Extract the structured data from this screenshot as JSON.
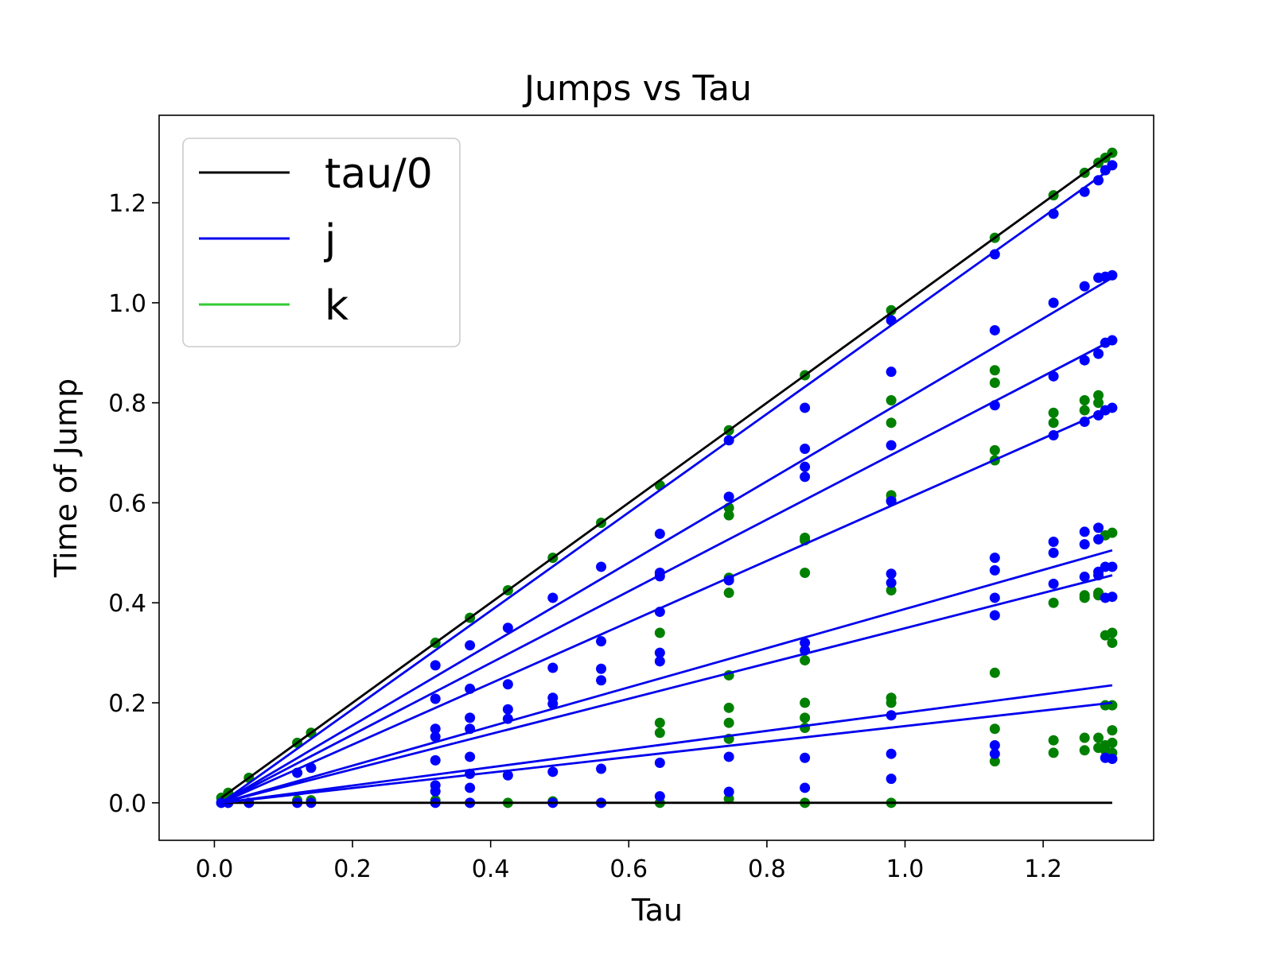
{
  "chart_data": {
    "type": "scatter",
    "title": "Jumps vs Tau",
    "xlabel": "Tau",
    "ylabel": "Time of Jump",
    "xlim": [
      -0.08,
      1.36
    ],
    "ylim": [
      -0.075,
      1.375
    ],
    "x_ticks": [
      "0.0",
      "0.2",
      "0.4",
      "0.6",
      "0.8",
      "1.0",
      "1.2"
    ],
    "y_ticks": [
      "0.0",
      "0.2",
      "0.4",
      "0.6",
      "0.8",
      "1.0",
      "1.2"
    ],
    "grid": false,
    "legend": {
      "placement": "top-left",
      "entries": [
        {
          "label": "tau/0",
          "color": "#000000"
        },
        {
          "label": "j",
          "color": "#0000ee"
        },
        {
          "label": "k",
          "color": "#33cc33"
        }
      ]
    },
    "colors": {
      "tau": "#000000",
      "j_line": "#0000ee",
      "j_point": "#0000ff",
      "k_point": "#008000"
    },
    "tau_values": [
      0.01,
      0.02,
      0.05,
      0.12,
      0.14,
      0.32,
      0.37,
      0.425,
      0.49,
      0.56,
      0.645,
      0.745,
      0.855,
      0.98,
      1.13,
      1.215,
      1.26,
      1.28,
      1.29,
      1.3
    ],
    "lines": [
      {
        "series": "tau/0",
        "kind": "tau",
        "x": [
          0.01,
          1.3
        ],
        "y": [
          0.01,
          1.3
        ]
      },
      {
        "series": "tau/0",
        "kind": "tau",
        "x": [
          0.01,
          1.3
        ],
        "y": [
          0.0,
          0.0
        ]
      },
      {
        "series": "j",
        "kind": "j",
        "x": [
          0.01,
          1.3
        ],
        "y": [
          0.0,
          1.27
        ]
      },
      {
        "series": "j",
        "kind": "j",
        "x": [
          0.01,
          1.3
        ],
        "y": [
          0.0,
          1.05
        ]
      },
      {
        "series": "j",
        "kind": "j",
        "x": [
          0.01,
          1.3
        ],
        "y": [
          0.0,
          0.925
        ]
      },
      {
        "series": "j",
        "kind": "j",
        "x": [
          0.01,
          1.3
        ],
        "y": [
          0.0,
          0.79
        ]
      },
      {
        "series": "j",
        "kind": "j",
        "x": [
          0.01,
          1.3
        ],
        "y": [
          0.0,
          0.505
        ]
      },
      {
        "series": "j",
        "kind": "j",
        "x": [
          0.01,
          1.3
        ],
        "y": [
          0.0,
          0.455
        ]
      },
      {
        "series": "j",
        "kind": "j",
        "x": [
          0.01,
          1.3
        ],
        "y": [
          0.0,
          0.235
        ]
      },
      {
        "series": "j",
        "kind": "j",
        "x": [
          0.01,
          1.3
        ],
        "y": [
          0.0,
          0.2
        ]
      }
    ],
    "k_points": [
      [
        0.01,
        0.01
      ],
      [
        0.02,
        0.02
      ],
      [
        0.05,
        0.05
      ],
      [
        0.12,
        0.12
      ],
      [
        0.14,
        0.14
      ],
      [
        0.32,
        0.32
      ],
      [
        0.37,
        0.37
      ],
      [
        0.425,
        0.425
      ],
      [
        0.49,
        0.49
      ],
      [
        0.56,
        0.56
      ],
      [
        0.645,
        0.635
      ],
      [
        0.745,
        0.745
      ],
      [
        0.855,
        0.855
      ],
      [
        0.98,
        0.985
      ],
      [
        1.13,
        1.13
      ],
      [
        1.215,
        1.215
      ],
      [
        1.26,
        1.26
      ],
      [
        1.28,
        1.28
      ],
      [
        1.29,
        1.29
      ],
      [
        1.3,
        1.3
      ],
      [
        0.01,
        0.0
      ],
      [
        0.02,
        0.0
      ],
      [
        0.05,
        0.0
      ],
      [
        0.12,
        0.005
      ],
      [
        0.14,
        0.005
      ],
      [
        0.32,
        0.005
      ],
      [
        0.37,
        0.0
      ],
      [
        0.425,
        0.0
      ],
      [
        0.49,
        0.003
      ],
      [
        0.56,
        0.0
      ],
      [
        0.645,
        0.0
      ],
      [
        0.745,
        0.008
      ],
      [
        0.855,
        0.0
      ],
      [
        0.98,
        0.0
      ],
      [
        0.645,
        0.34
      ],
      [
        0.645,
        0.16
      ],
      [
        0.645,
        0.14
      ],
      [
        0.745,
        0.59
      ],
      [
        0.745,
        0.575
      ],
      [
        0.745,
        0.45
      ],
      [
        0.745,
        0.42
      ],
      [
        0.745,
        0.255
      ],
      [
        0.745,
        0.19
      ],
      [
        0.745,
        0.16
      ],
      [
        0.745,
        0.128
      ],
      [
        0.855,
        0.53
      ],
      [
        0.855,
        0.525
      ],
      [
        0.855,
        0.46
      ],
      [
        0.855,
        0.285
      ],
      [
        0.855,
        0.2
      ],
      [
        0.855,
        0.17
      ],
      [
        0.855,
        0.15
      ],
      [
        0.98,
        0.805
      ],
      [
        0.98,
        0.76
      ],
      [
        0.98,
        0.615
      ],
      [
        0.98,
        0.605
      ],
      [
        0.98,
        0.425
      ],
      [
        0.98,
        0.21
      ],
      [
        0.98,
        0.2
      ],
      [
        1.13,
        0.865
      ],
      [
        1.13,
        0.84
      ],
      [
        1.13,
        0.705
      ],
      [
        1.13,
        0.685
      ],
      [
        1.13,
        0.26
      ],
      [
        1.13,
        0.148
      ],
      [
        1.13,
        0.083
      ],
      [
        1.215,
        0.78
      ],
      [
        1.215,
        0.76
      ],
      [
        1.215,
        0.4
      ],
      [
        1.215,
        0.125
      ],
      [
        1.215,
        0.1
      ],
      [
        1.26,
        0.805
      ],
      [
        1.26,
        0.785
      ],
      [
        1.26,
        0.415
      ],
      [
        1.26,
        0.41
      ],
      [
        1.26,
        0.13
      ],
      [
        1.26,
        0.105
      ],
      [
        1.28,
        0.815
      ],
      [
        1.28,
        0.8
      ],
      [
        1.28,
        0.42
      ],
      [
        1.28,
        0.415
      ],
      [
        1.28,
        0.13
      ],
      [
        1.28,
        0.11
      ],
      [
        1.29,
        0.535
      ],
      [
        1.29,
        0.335
      ],
      [
        1.29,
        0.195
      ],
      [
        1.29,
        0.115
      ],
      [
        1.29,
        0.105
      ],
      [
        1.3,
        0.54
      ],
      [
        1.3,
        0.34
      ],
      [
        1.3,
        0.32
      ],
      [
        1.3,
        0.195
      ],
      [
        1.3,
        0.145
      ],
      [
        1.3,
        0.12
      ],
      [
        1.3,
        0.1
      ]
    ],
    "j_points": [
      [
        0.01,
        0.0
      ],
      [
        0.02,
        0.0
      ],
      [
        0.05,
        0.0
      ],
      [
        0.12,
        0.0
      ],
      [
        0.14,
        0.0
      ],
      [
        0.12,
        0.06
      ],
      [
        0.14,
        0.07
      ],
      [
        0.32,
        0.275
      ],
      [
        0.32,
        0.208
      ],
      [
        0.32,
        0.148
      ],
      [
        0.32,
        0.132
      ],
      [
        0.32,
        0.085
      ],
      [
        0.32,
        0.035
      ],
      [
        0.32,
        0.023
      ],
      [
        0.32,
        0.0
      ],
      [
        0.37,
        0.315
      ],
      [
        0.37,
        0.228
      ],
      [
        0.37,
        0.17
      ],
      [
        0.37,
        0.148
      ],
      [
        0.37,
        0.092
      ],
      [
        0.37,
        0.058
      ],
      [
        0.37,
        0.03
      ],
      [
        0.37,
        0.0
      ],
      [
        0.425,
        0.35
      ],
      [
        0.425,
        0.237
      ],
      [
        0.425,
        0.187
      ],
      [
        0.425,
        0.168
      ],
      [
        0.425,
        0.055
      ],
      [
        0.49,
        0.41
      ],
      [
        0.49,
        0.27
      ],
      [
        0.49,
        0.21
      ],
      [
        0.49,
        0.198
      ],
      [
        0.49,
        0.062
      ],
      [
        0.49,
        0.0
      ],
      [
        0.56,
        0.472
      ],
      [
        0.56,
        0.323
      ],
      [
        0.56,
        0.268
      ],
      [
        0.56,
        0.245
      ],
      [
        0.56,
        0.068
      ],
      [
        0.56,
        0.0
      ],
      [
        0.645,
        0.538
      ],
      [
        0.645,
        0.46
      ],
      [
        0.645,
        0.453
      ],
      [
        0.645,
        0.382
      ],
      [
        0.645,
        0.3
      ],
      [
        0.645,
        0.283
      ],
      [
        0.645,
        0.08
      ],
      [
        0.645,
        0.013
      ],
      [
        0.745,
        0.725
      ],
      [
        0.745,
        0.612
      ],
      [
        0.745,
        0.445
      ],
      [
        0.745,
        0.092
      ],
      [
        0.745,
        0.022
      ],
      [
        0.855,
        0.79
      ],
      [
        0.855,
        0.708
      ],
      [
        0.855,
        0.672
      ],
      [
        0.855,
        0.652
      ],
      [
        0.855,
        0.32
      ],
      [
        0.855,
        0.305
      ],
      [
        0.855,
        0.09
      ],
      [
        0.855,
        0.03
      ],
      [
        0.98,
        0.965
      ],
      [
        0.98,
        0.862
      ],
      [
        0.98,
        0.715
      ],
      [
        0.98,
        0.603
      ],
      [
        0.98,
        0.458
      ],
      [
        0.98,
        0.44
      ],
      [
        0.98,
        0.175
      ],
      [
        0.98,
        0.098
      ],
      [
        0.98,
        0.048
      ],
      [
        1.13,
        1.097
      ],
      [
        1.13,
        0.945
      ],
      [
        1.13,
        0.795
      ],
      [
        1.13,
        0.49
      ],
      [
        1.13,
        0.465
      ],
      [
        1.13,
        0.41
      ],
      [
        1.13,
        0.375
      ],
      [
        1.13,
        0.115
      ],
      [
        1.13,
        0.098
      ],
      [
        1.215,
        1.178
      ],
      [
        1.215,
        1.0
      ],
      [
        1.215,
        0.853
      ],
      [
        1.215,
        0.735
      ],
      [
        1.215,
        0.522
      ],
      [
        1.215,
        0.5
      ],
      [
        1.215,
        0.438
      ],
      [
        1.26,
        1.222
      ],
      [
        1.26,
        1.033
      ],
      [
        1.26,
        0.885
      ],
      [
        1.26,
        0.762
      ],
      [
        1.26,
        0.542
      ],
      [
        1.26,
        0.517
      ],
      [
        1.26,
        0.452
      ],
      [
        1.28,
        1.245
      ],
      [
        1.28,
        1.05
      ],
      [
        1.28,
        0.898
      ],
      [
        1.28,
        0.775
      ],
      [
        1.28,
        0.55
      ],
      [
        1.28,
        0.527
      ],
      [
        1.28,
        0.462
      ],
      [
        1.28,
        0.455
      ],
      [
        1.29,
        1.265
      ],
      [
        1.29,
        1.052
      ],
      [
        1.29,
        0.92
      ],
      [
        1.29,
        0.785
      ],
      [
        1.29,
        0.472
      ],
      [
        1.29,
        0.41
      ],
      [
        1.29,
        0.09
      ],
      [
        1.3,
        1.275
      ],
      [
        1.3,
        1.055
      ],
      [
        1.3,
        0.925
      ],
      [
        1.3,
        0.79
      ],
      [
        1.3,
        0.472
      ],
      [
        1.3,
        0.412
      ],
      [
        1.3,
        0.088
      ]
    ]
  }
}
